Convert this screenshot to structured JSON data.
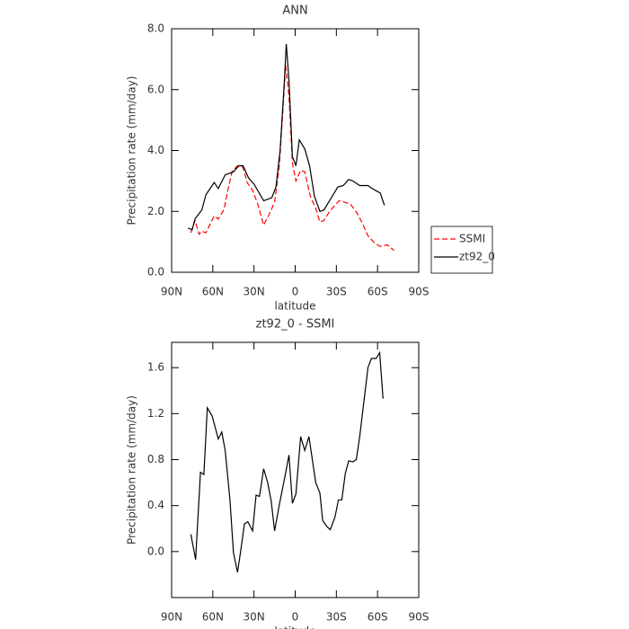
{
  "chart_data": [
    {
      "type": "line",
      "title": "ANN",
      "xlabel": "latitude",
      "ylabel": "Precipitation rate (mm/day)",
      "xlim": [
        90,
        -90
      ],
      "xticks": [
        {
          "value": 90,
          "label": "90N"
        },
        {
          "value": 60,
          "label": "60N"
        },
        {
          "value": 30,
          "label": "30N"
        },
        0,
        {
          "value": -30,
          "label": "30S"
        },
        {
          "value": -60,
          "label": "60S"
        },
        {
          "value": -90,
          "label": "90S"
        }
      ],
      "ylim": [
        0,
        8
      ],
      "yticks": [
        {
          "value": 0,
          "label": "0.0"
        },
        {
          "value": 2,
          "label": "2.0"
        },
        {
          "value": 4,
          "label": "4.0"
        },
        {
          "value": 6,
          "label": "6.0"
        },
        {
          "value": 8,
          "label": "8.0"
        }
      ],
      "legend": "right",
      "series": [
        {
          "name": "SSMI",
          "color": "#ff0000",
          "dash": true,
          "x": [
            76,
            73,
            70,
            68,
            65,
            59,
            56,
            52,
            49,
            46,
            42,
            38,
            35,
            31,
            27,
            23,
            19,
            15,
            11.5,
            9,
            7,
            4.5,
            2,
            -0.5,
            -4,
            -7,
            -11,
            -15,
            -18,
            -21,
            -25,
            -32,
            -40,
            -45,
            -49,
            -53,
            -58,
            -62,
            -67,
            -72
          ],
          "values": [
            1.3,
            1.7,
            1.25,
            1.35,
            1.3,
            1.85,
            1.75,
            2.05,
            2.7,
            3.3,
            3.5,
            3.45,
            2.95,
            2.7,
            2.2,
            1.55,
            1.9,
            2.3,
            3.5,
            5.3,
            6.8,
            5.8,
            3.6,
            3.0,
            3.35,
            3.3,
            2.5,
            2.1,
            1.65,
            1.7,
            2.0,
            2.35,
            2.25,
            1.95,
            1.6,
            1.2,
            0.95,
            0.85,
            0.9,
            0.72
          ]
        },
        {
          "name": "zt92_0",
          "color": "#000000",
          "dash": false,
          "x": [
            78,
            75,
            73,
            68,
            65,
            59,
            56,
            51,
            45,
            41,
            38,
            34,
            30,
            23,
            17,
            14,
            11,
            8,
            6.5,
            4.5,
            2,
            -0.5,
            -3,
            -7,
            -10.5,
            -14,
            -18,
            -21,
            -27,
            -31,
            -35,
            -39,
            -42,
            -47,
            -53,
            -56,
            -60,
            -62,
            -65
          ],
          "values": [
            1.45,
            1.4,
            1.75,
            2.05,
            2.55,
            2.95,
            2.75,
            3.2,
            3.3,
            3.5,
            3.5,
            3.1,
            2.9,
            2.35,
            2.45,
            2.8,
            4.0,
            6.2,
            7.5,
            6.3,
            3.8,
            3.5,
            4.35,
            4.05,
            3.5,
            2.5,
            2.0,
            2.05,
            2.5,
            2.8,
            2.85,
            3.05,
            3.0,
            2.85,
            2.85,
            2.75,
            2.65,
            2.6,
            2.2
          ]
        }
      ]
    },
    {
      "type": "line",
      "title": "zt92_0 - SSMI",
      "xlabel": "latitude",
      "ylabel": "Precipitation rate (mm/day)",
      "xlim": [
        90,
        -90
      ],
      "xticks": [
        {
          "value": 90,
          "label": "90N"
        },
        {
          "value": 60,
          "label": "60N"
        },
        {
          "value": 30,
          "label": "30N"
        },
        0,
        {
          "value": -30,
          "label": "30S"
        },
        {
          "value": -60,
          "label": "60S"
        },
        {
          "value": -90,
          "label": "90S"
        }
      ],
      "ylim": [
        -0.4,
        1.82
      ],
      "yticks": [
        {
          "value": 0,
          "label": "0.0"
        },
        0.4,
        0.8,
        1.2,
        1.6
      ],
      "series": [
        {
          "color": "#000000",
          "dash": false,
          "x": [
            76,
            72.5,
            69,
            66.5,
            64,
            60.5,
            56,
            53.5,
            51,
            47.5,
            45,
            42,
            40,
            37,
            34.5,
            31,
            28.5,
            26,
            23,
            20,
            17.5,
            15,
            12,
            10,
            7,
            4.5,
            2,
            -0.5,
            -4,
            -7,
            -10,
            -12.5,
            -15,
            -18,
            -20,
            -23,
            -25.5,
            -29,
            -31.5,
            -34,
            -36.5,
            -39,
            -42,
            -44.5,
            -47,
            -50,
            -53,
            -55.5,
            -59,
            -61.5,
            -64
          ],
          "values": [
            0.15,
            -0.07,
            0.69,
            0.67,
            1.25,
            1.18,
            0.98,
            1.04,
            0.88,
            0.45,
            -0.01,
            -0.18,
            -0.02,
            0.24,
            0.26,
            0.18,
            0.49,
            0.48,
            0.72,
            0.6,
            0.44,
            0.18,
            0.38,
            0.5,
            0.68,
            0.84,
            0.42,
            0.5,
            1.0,
            0.88,
            1.0,
            0.8,
            0.6,
            0.51,
            0.27,
            0.22,
            0.19,
            0.3,
            0.45,
            0.45,
            0.68,
            0.79,
            0.78,
            0.8,
            1.0,
            1.3,
            1.6,
            1.68,
            1.68,
            1.73,
            1.33
          ]
        }
      ]
    }
  ]
}
